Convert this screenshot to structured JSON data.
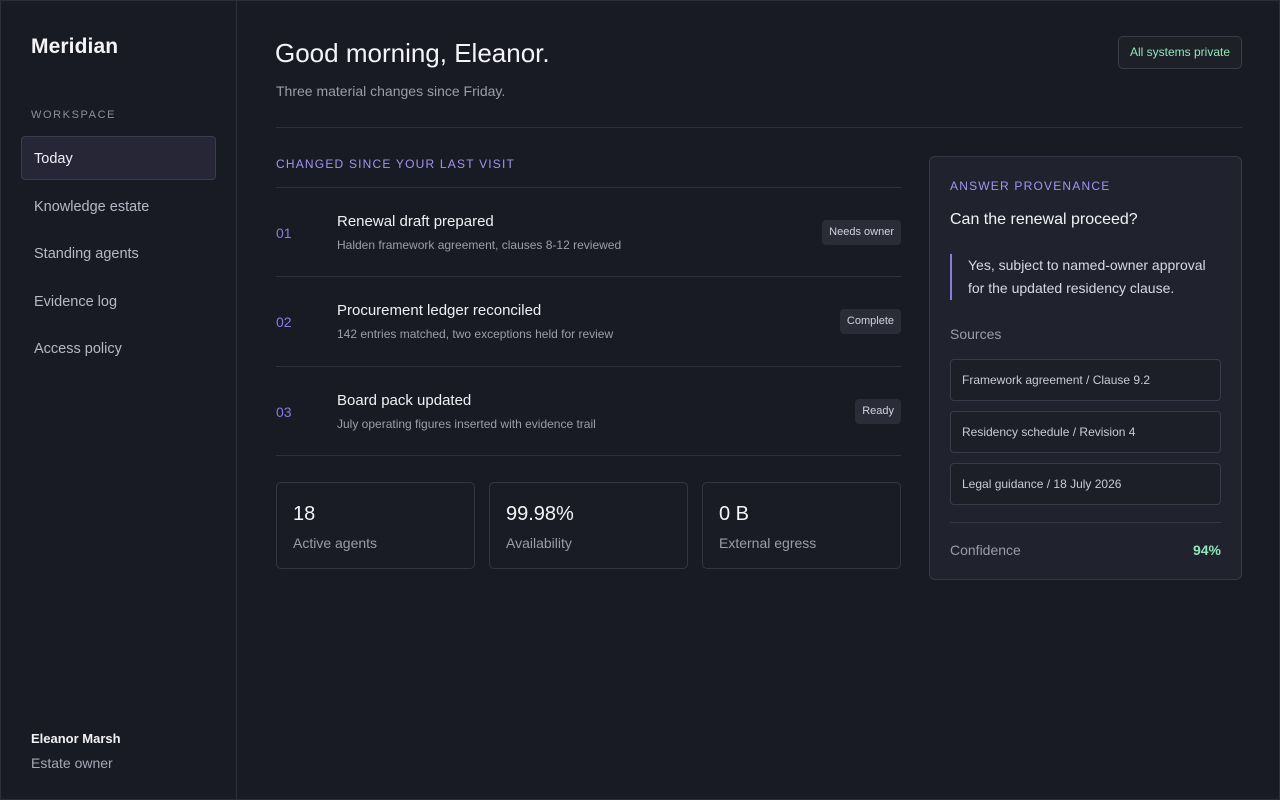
{
  "sidebar": {
    "brand": "Meridian",
    "section_label": "WORKSPACE",
    "items": [
      {
        "label": "Today",
        "active": true
      },
      {
        "label": "Knowledge estate",
        "active": false
      },
      {
        "label": "Standing agents",
        "active": false
      },
      {
        "label": "Evidence log",
        "active": false
      },
      {
        "label": "Access policy",
        "active": false
      }
    ],
    "user": {
      "name": "Eleanor Marsh",
      "role": "Estate owner"
    }
  },
  "header": {
    "greeting": "Good morning, Eleanor.",
    "subtitle": "Three material changes since Friday.",
    "status": "All systems private"
  },
  "changes": {
    "label": "CHANGED SINCE YOUR LAST VISIT",
    "items": [
      {
        "num": "01",
        "title": "Renewal draft prepared",
        "desc": "Halden framework agreement, clauses 8-12 reviewed",
        "badge": "Needs owner"
      },
      {
        "num": "02",
        "title": "Procurement ledger reconciled",
        "desc": "142 entries matched, two exceptions held for review",
        "badge": "Complete"
      },
      {
        "num": "03",
        "title": "Board pack updated",
        "desc": "July operating figures inserted with evidence trail",
        "badge": "Ready"
      }
    ]
  },
  "stats": [
    {
      "value": "18",
      "label": "Active agents"
    },
    {
      "value": "99.98%",
      "label": "Availability"
    },
    {
      "value": "0 B",
      "label": "External egress"
    }
  ],
  "provenance": {
    "label": "ANSWER PROVENANCE",
    "question": "Can the renewal proceed?",
    "answer": "Yes, subject to named-owner approval for the updated residency clause.",
    "sources_label": "Sources",
    "sources": [
      "Framework agreement / Clause 9.2",
      "Residency schedule / Revision 4",
      "Legal guidance / 18 July 2026"
    ],
    "confidence_label": "Confidence",
    "confidence_value": "94%"
  },
  "colors": {
    "accent": "#8c7be0",
    "success": "#8fe6b8",
    "background": "#181a24"
  }
}
